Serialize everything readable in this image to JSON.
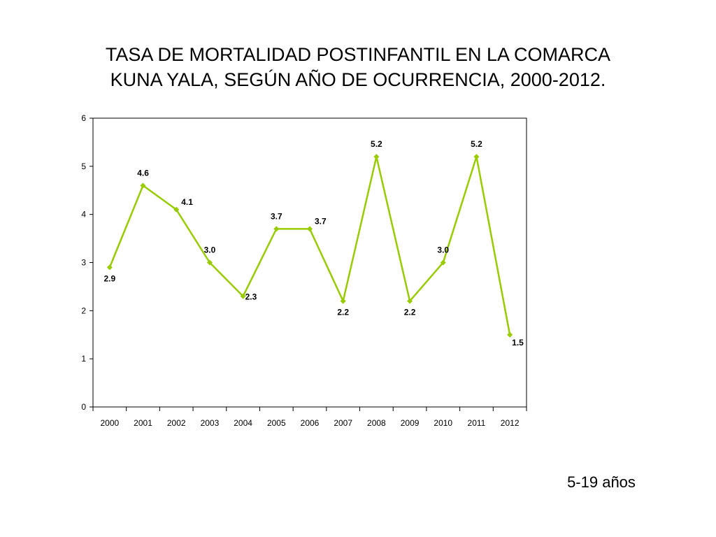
{
  "chart_data": {
    "type": "line",
    "title_lines": [
      "TASA DE MORTALIDAD POSTINFANTIL EN LA COMARCA",
      "KUNA YALA, SEGÚN AÑO DE OCURRENCIA, 2000-2012."
    ],
    "categories": [
      "2000",
      "2001",
      "2002",
      "2003",
      "2004",
      "2005",
      "2006",
      "2007",
      "2008",
      "2009",
      "2010",
      "2011",
      "2012"
    ],
    "series": [
      {
        "values": [
          2.9,
          4.6,
          4.1,
          3.0,
          2.3,
          3.7,
          3.7,
          2.2,
          5.2,
          2.2,
          3.0,
          5.2,
          1.5
        ],
        "data_labels": [
          "2.9",
          "4.6",
          "4.1",
          "3.0",
          "2.3",
          "3.7",
          "3.7",
          "2.2",
          "5.2",
          "2.2",
          "3.0",
          "5.2",
          "1.5"
        ],
        "color": "#99cc00"
      }
    ],
    "ylim": [
      0,
      6
    ],
    "yticks": [
      "0",
      "1",
      "2",
      "3",
      "4",
      "5",
      "6"
    ],
    "xlabel": "",
    "ylabel": "",
    "grid": false,
    "legend": "none",
    "label_placement": [
      "below",
      "above",
      "above-right",
      "above",
      "right",
      "above",
      "above-right",
      "below",
      "above",
      "below",
      "above",
      "above",
      "below-right"
    ]
  },
  "caption": "5-19 años",
  "colors": {
    "line": "#99cc00",
    "axis": "#000000",
    "background": "#ffffff"
  }
}
